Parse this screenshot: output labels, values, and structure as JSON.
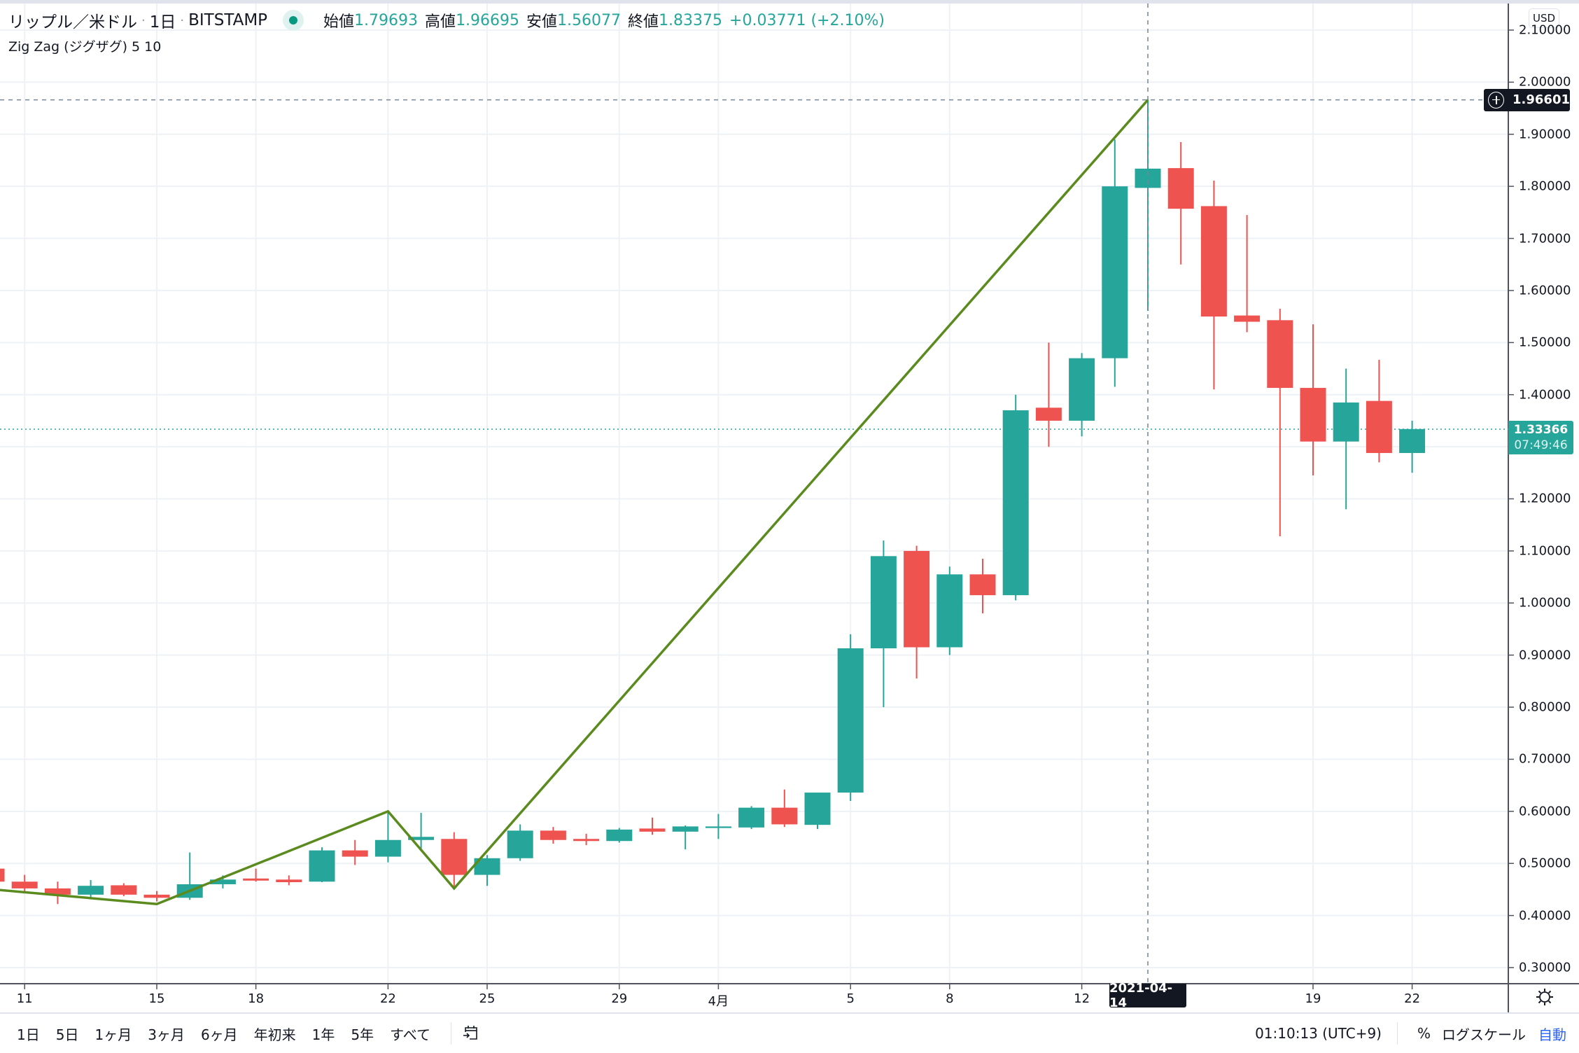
{
  "header": {
    "symbol_title": "リップル／米ドル",
    "interval": "1日",
    "exchange": "BITSTAMP",
    "ohlc": {
      "open_label": "始値",
      "open": "1.79693",
      "high_label": "高値",
      "high": "1.96695",
      "low_label": "安値",
      "low": "1.56077",
      "close_label": "終値",
      "close": "1.83375",
      "change": "+0.03771 (+2.10%)"
    },
    "indicator": "Zig Zag (ジグザグ) 5 10"
  },
  "price_axis": {
    "currency_button": "USD",
    "crosshair_price": "1.96601",
    "last_price": "1.33366",
    "countdown": "07:49:46",
    "ticks": [
      "2.10000",
      "2.00000",
      "1.90000",
      "1.80000",
      "1.70000",
      "1.60000",
      "1.50000",
      "1.40000",
      "1.30000",
      "1.20000",
      "1.10000",
      "1.00000",
      "0.90000",
      "0.80000",
      "0.70000",
      "0.60000",
      "0.50000",
      "0.40000",
      "0.30000"
    ]
  },
  "time_axis": {
    "ticks": [
      {
        "label": "11",
        "day": 1
      },
      {
        "label": "15",
        "day": 5
      },
      {
        "label": "18",
        "day": 8
      },
      {
        "label": "22",
        "day": 12
      },
      {
        "label": "25",
        "day": 15
      },
      {
        "label": "29",
        "day": 19
      },
      {
        "label": "4月",
        "day": 22
      },
      {
        "label": "5",
        "day": 26
      },
      {
        "label": "8",
        "day": 29
      },
      {
        "label": "12",
        "day": 33
      },
      {
        "label": "19",
        "day": 40
      },
      {
        "label": "22",
        "day": 43
      }
    ],
    "crosshair_date": "2021-04-14"
  },
  "bottom_bar": {
    "ranges": [
      "1日",
      "5日",
      "1ヶ月",
      "3ヶ月",
      "6ヶ月",
      "年初来",
      "1年",
      "5年",
      "すべて"
    ],
    "time": "01:10:13 (UTC+9)",
    "percent": "%",
    "log_scale": "ログスケール",
    "auto": "自動"
  },
  "colors": {
    "up": "#26a69a",
    "down": "#ef5350",
    "zigzag": "#5b8a1e",
    "grid": "#eef1f5",
    "crosshair": "#758696"
  },
  "chart_data": {
    "type": "candlestick",
    "title": "リップル／米ドル · 1日 · BITSTAMP",
    "xlabel": "",
    "ylabel": "USD",
    "ylim": [
      0.28,
      2.13
    ],
    "grid": true,
    "categories": [
      "03-10",
      "03-11",
      "03-12",
      "03-13",
      "03-14",
      "03-15",
      "03-16",
      "03-17",
      "03-18",
      "03-19",
      "03-20",
      "03-21",
      "03-22",
      "03-23",
      "03-24",
      "03-25",
      "03-26",
      "03-27",
      "03-28",
      "03-29",
      "03-30",
      "03-31",
      "04-01",
      "04-02",
      "04-03",
      "04-04",
      "04-05",
      "04-06",
      "04-07",
      "04-08",
      "04-09",
      "04-10",
      "04-11",
      "04-12",
      "04-13",
      "04-14",
      "04-15",
      "04-16",
      "04-17",
      "04-18",
      "04-19",
      "04-20",
      "04-21",
      "04-22"
    ],
    "ohlc": [
      [
        0.49,
        0.465,
        0.495,
        0.46
      ],
      [
        0.465,
        0.452,
        0.478,
        0.443
      ],
      [
        0.452,
        0.44,
        0.465,
        0.422
      ],
      [
        0.44,
        0.457,
        0.468,
        0.434
      ],
      [
        0.458,
        0.44,
        0.462,
        0.437
      ],
      [
        0.44,
        0.434,
        0.447,
        0.427
      ],
      [
        0.434,
        0.46,
        0.521,
        0.43
      ],
      [
        0.46,
        0.469,
        0.477,
        0.452
      ],
      [
        0.471,
        0.467,
        0.49,
        0.465
      ],
      [
        0.469,
        0.464,
        0.477,
        0.458
      ],
      [
        0.465,
        0.525,
        0.531,
        0.464
      ],
      [
        0.525,
        0.513,
        0.545,
        0.497
      ],
      [
        0.513,
        0.545,
        0.598,
        0.502
      ],
      [
        0.545,
        0.551,
        0.597,
        0.525
      ],
      [
        0.547,
        0.478,
        0.56,
        0.452
      ],
      [
        0.478,
        0.51,
        0.516,
        0.457
      ],
      [
        0.51,
        0.563,
        0.575,
        0.505
      ],
      [
        0.563,
        0.545,
        0.57,
        0.538
      ],
      [
        0.547,
        0.543,
        0.557,
        0.535
      ],
      [
        0.543,
        0.565,
        0.568,
        0.54
      ],
      [
        0.567,
        0.561,
        0.588,
        0.555
      ],
      [
        0.561,
        0.571,
        0.573,
        0.527
      ],
      [
        0.568,
        0.571,
        0.595,
        0.547
      ],
      [
        0.569,
        0.607,
        0.61,
        0.566
      ],
      [
        0.607,
        0.575,
        0.642,
        0.57
      ],
      [
        0.574,
        0.636,
        0.636,
        0.566
      ],
      [
        0.636,
        0.913,
        0.94,
        0.62
      ],
      [
        0.913,
        1.09,
        1.12,
        0.8
      ],
      [
        1.1,
        0.915,
        1.11,
        0.855
      ],
      [
        0.915,
        1.055,
        1.07,
        0.9
      ],
      [
        1.055,
        1.015,
        1.085,
        0.98
      ],
      [
        1.015,
        1.37,
        1.4,
        1.005
      ],
      [
        1.375,
        1.35,
        1.5,
        1.3
      ],
      [
        1.35,
        1.47,
        1.48,
        1.32
      ],
      [
        1.47,
        1.8,
        1.89,
        1.415
      ],
      [
        1.797,
        1.834,
        1.967,
        1.561
      ],
      [
        1.835,
        1.757,
        1.885,
        1.65
      ],
      [
        1.762,
        1.55,
        1.811,
        1.41
      ],
      [
        1.552,
        1.54,
        1.745,
        1.52
      ],
      [
        1.543,
        1.413,
        1.565,
        1.128
      ],
      [
        1.413,
        1.31,
        1.535,
        1.245
      ],
      [
        1.31,
        1.385,
        1.45,
        1.18
      ],
      [
        1.388,
        1.288,
        1.467,
        1.27
      ],
      [
        1.288,
        1.334,
        1.35,
        1.25
      ]
    ],
    "series": [
      {
        "name": "Zig Zag (5, 10)",
        "points": [
          [
            -0.3,
            0.452
          ],
          [
            5,
            0.422
          ],
          [
            12,
            0.6
          ],
          [
            14,
            0.452
          ],
          [
            35,
            1.966
          ]
        ]
      }
    ],
    "crosshair": {
      "day": 35,
      "price": 1.96601
    },
    "last_price_line": 1.33366
  }
}
